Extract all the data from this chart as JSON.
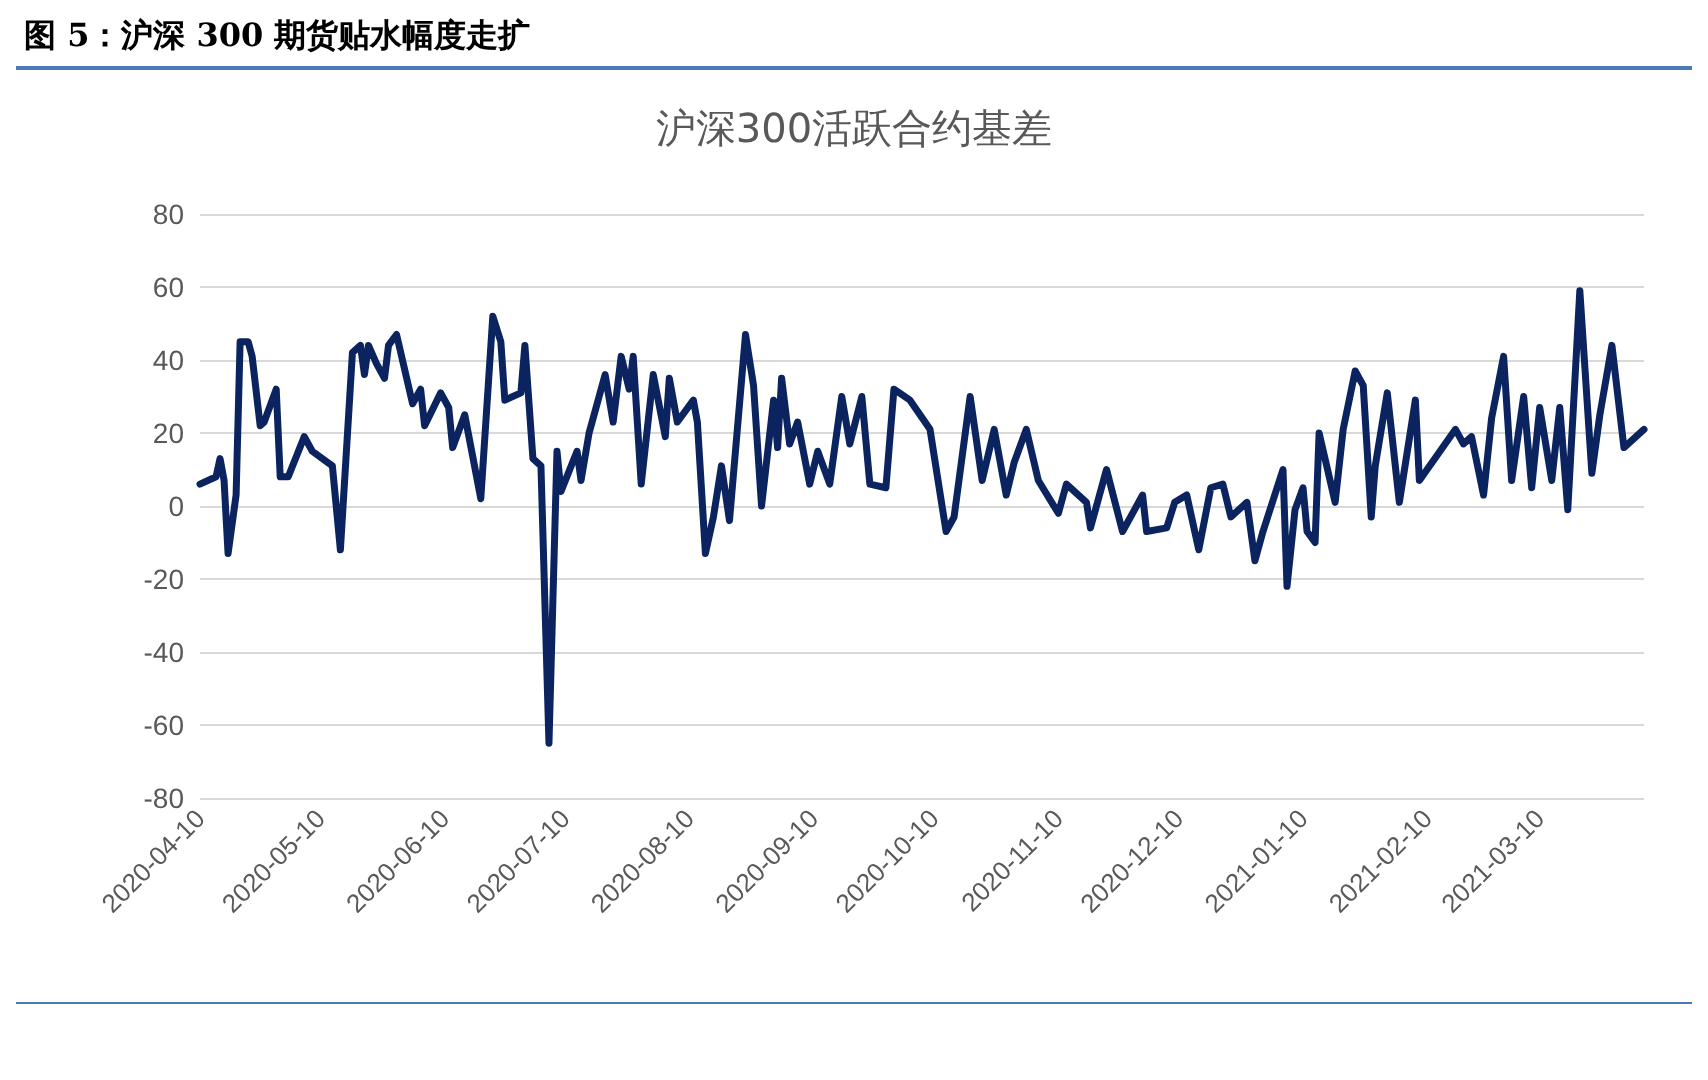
{
  "chart_data": {
    "type": "line",
    "title": "图 5：沪深 300 期货贴水幅度走扩",
    "subtitle": "沪深300活跃合约基差",
    "x": [
      "2020-04-10",
      "2020-04-14",
      "2020-04-15",
      "2020-04-16",
      "2020-04-17",
      "2020-04-19",
      "2020-04-20",
      "2020-04-22",
      "2020-04-23",
      "2020-04-25",
      "2020-04-26",
      "2020-04-29",
      "2020-04-30",
      "2020-05-02",
      "2020-05-06",
      "2020-05-08",
      "2020-05-13",
      "2020-05-15",
      "2020-05-18",
      "2020-05-20",
      "2020-05-21",
      "2020-05-22",
      "2020-05-24",
      "2020-05-26",
      "2020-05-27",
      "2020-05-29",
      "2020-06-02",
      "2020-06-04",
      "2020-06-05",
      "2020-06-09",
      "2020-06-11",
      "2020-06-12",
      "2020-06-15",
      "2020-06-19",
      "2020-06-22",
      "2020-06-24",
      "2020-06-25",
      "2020-06-29",
      "2020-06-30",
      "2020-07-02",
      "2020-07-04",
      "2020-07-06",
      "2020-07-08",
      "2020-07-09",
      "2020-07-13",
      "2020-07-14",
      "2020-07-16",
      "2020-07-20",
      "2020-07-22",
      "2020-07-24",
      "2020-07-26",
      "2020-07-27",
      "2020-07-29",
      "2020-08-01",
      "2020-08-04",
      "2020-08-05",
      "2020-08-07",
      "2020-08-11",
      "2020-08-12",
      "2020-08-14",
      "2020-08-16",
      "2020-08-18",
      "2020-08-20",
      "2020-08-24",
      "2020-08-26",
      "2020-08-28",
      "2020-08-31",
      "2020-09-01",
      "2020-09-02",
      "2020-09-04",
      "2020-09-06",
      "2020-09-09",
      "2020-09-11",
      "2020-09-14",
      "2020-09-17",
      "2020-09-19",
      "2020-09-22",
      "2020-09-24",
      "2020-09-28",
      "2020-09-30",
      "2020-10-04",
      "2020-10-09",
      "2020-10-13",
      "2020-10-15",
      "2020-10-19",
      "2020-10-22",
      "2020-10-25",
      "2020-10-28",
      "2020-10-30",
      "2020-11-02",
      "2020-11-05",
      "2020-11-10",
      "2020-11-12",
      "2020-11-17",
      "2020-11-18",
      "2020-11-22",
      "2020-11-26",
      "2020-12-01",
      "2020-12-02",
      "2020-12-07",
      "2020-12-09",
      "2020-12-12",
      "2020-12-15",
      "2020-12-18",
      "2020-12-21",
      "2020-12-23",
      "2020-12-27",
      "2020-12-29",
      "2020-12-31",
      "2021-01-05",
      "2021-01-06",
      "2021-01-08",
      "2021-01-10",
      "2021-01-11",
      "2021-01-13",
      "2021-01-14",
      "2021-01-18",
      "2021-01-20",
      "2021-01-23",
      "2021-01-25",
      "2021-01-27",
      "2021-01-28",
      "2021-01-31",
      "2021-02-03",
      "2021-02-07",
      "2021-02-08",
      "2021-02-17",
      "2021-02-19",
      "2021-02-21",
      "2021-02-24",
      "2021-02-26",
      "2021-03-01",
      "2021-03-03",
      "2021-03-06",
      "2021-03-08",
      "2021-03-10",
      "2021-03-13",
      "2021-03-15",
      "2021-03-17",
      "2021-03-20",
      "2021-03-23",
      "2021-03-25",
      "2021-03-28",
      "2021-03-31",
      "2021-04-05"
    ],
    "series": [
      {
        "color": "#0b2460",
        "values": [
          6,
          8,
          13,
          7,
          -13,
          3,
          45,
          45,
          41,
          22,
          23,
          32,
          8,
          8,
          19,
          15,
          11,
          -12,
          42,
          44,
          36,
          44,
          39,
          35,
          44,
          47,
          28,
          32,
          22,
          31,
          27,
          16,
          25,
          2,
          52,
          45,
          29,
          31,
          44,
          13,
          11,
          -65,
          15,
          4,
          15,
          7,
          20,
          36,
          23,
          41,
          32,
          41,
          6,
          36,
          19,
          35,
          23,
          29,
          23,
          -13,
          -3,
          11,
          -4,
          47,
          33,
          0,
          29,
          16,
          35,
          17,
          23,
          6,
          15,
          6,
          30,
          17,
          30,
          6,
          5,
          32,
          29,
          21,
          -7,
          -3,
          30,
          7,
          21,
          3,
          12,
          21,
          7,
          -2,
          6,
          1,
          -6,
          10,
          -7,
          3,
          -7,
          -6,
          1,
          3,
          -12,
          5,
          6,
          -3,
          1,
          -15,
          -7,
          10,
          -22,
          -1,
          5,
          -7,
          -10,
          20,
          1,
          21,
          37,
          33,
          -3,
          11,
          31,
          1,
          29,
          7,
          21,
          17,
          19,
          3,
          24,
          41,
          7,
          30,
          5,
          27,
          7,
          27,
          -1,
          59,
          9,
          25,
          44,
          16,
          21
        ]
      }
    ],
    "xlim": [
      "2020-04-10",
      "2021-04-05"
    ],
    "xticks": [
      "2020-04-10",
      "2020-05-10",
      "2020-06-10",
      "2020-07-10",
      "2020-08-10",
      "2020-09-10",
      "2020-10-10",
      "2020-11-10",
      "2020-12-10",
      "2021-01-10",
      "2021-02-10",
      "2021-03-10"
    ],
    "ylim": [
      -80,
      80
    ],
    "yticks": [
      -80,
      -60,
      -40,
      -20,
      0,
      20,
      40,
      60,
      80
    ],
    "grid": "y",
    "marker": "none",
    "line_style": "solid"
  }
}
